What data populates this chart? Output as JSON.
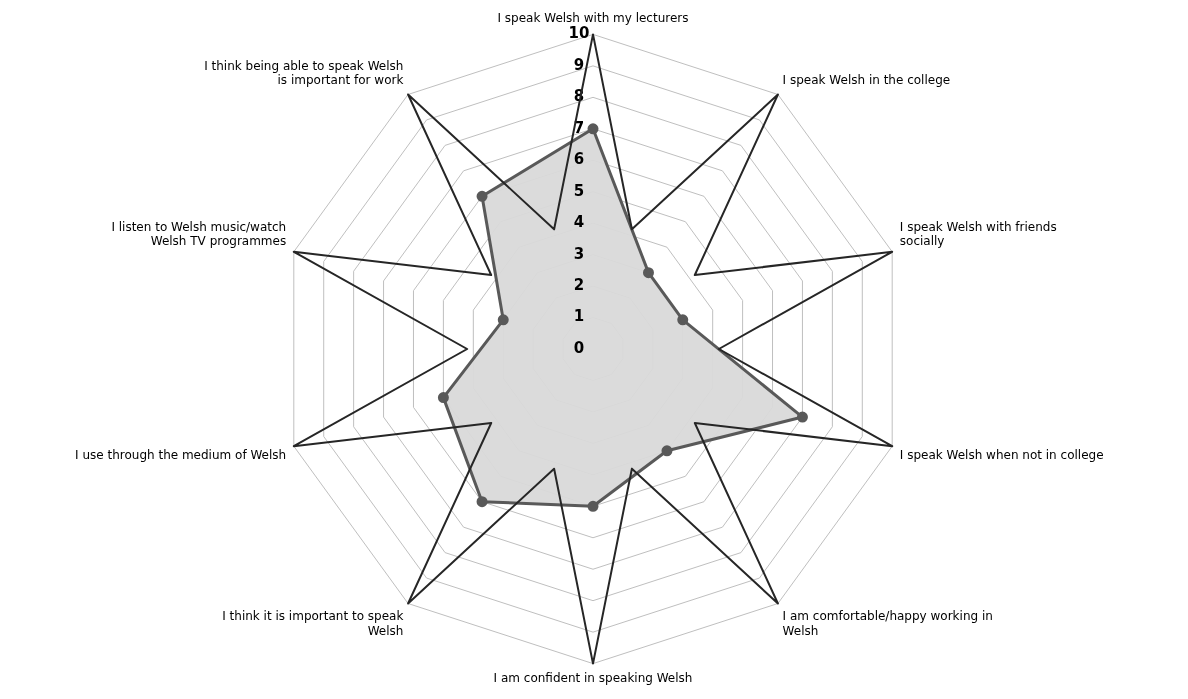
{
  "chart_data": {
    "type": "radar",
    "categories": [
      "I speak Welsh with my lecturers",
      "I speak Welsh in the college",
      "I speak Welsh with friends socially",
      "I speak Welsh when not in college",
      "I am comfortable/happy working in Welsh",
      "I am confident in speaking Welsh",
      "I think it is important to speak Welsh",
      "I use through the medium of Welsh",
      "I listen to Welsh music/watch Welsh TV programmes",
      "I think being able to speak Welsh is important for work"
    ],
    "series": [
      {
        "color": "#595959",
        "values": [
          7,
          3,
          3,
          7,
          4,
          5,
          6,
          5,
          3,
          6
        ]
      }
    ],
    "ylim": [
      0,
      10
    ],
    "yticks": [
      0,
      1,
      2,
      3,
      4,
      5,
      6,
      7,
      8,
      9,
      10
    ],
    "grid": true,
    "legend": false,
    "marker": "circle"
  }
}
